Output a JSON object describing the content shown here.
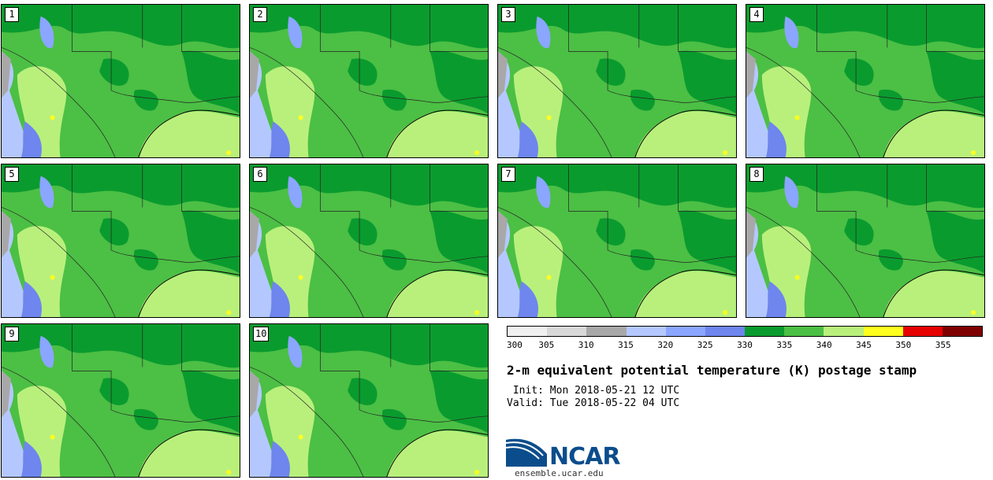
{
  "stamps": [
    {
      "label": "1"
    },
    {
      "label": "2"
    },
    {
      "label": "3"
    },
    {
      "label": "4"
    },
    {
      "label": "5"
    },
    {
      "label": "6"
    },
    {
      "label": "7"
    },
    {
      "label": "8"
    },
    {
      "label": "9"
    },
    {
      "label": "10"
    }
  ],
  "colorbar": {
    "ticks": [
      "300",
      "305",
      "310",
      "315",
      "320",
      "325",
      "330",
      "335",
      "340",
      "345",
      "350",
      "355"
    ],
    "colors": [
      "#f0f0f0",
      "#d8d8d8",
      "#a8a8a8",
      "#b4c8ff",
      "#8aa6ff",
      "#6e86ee",
      "#0a9b2e",
      "#4cbf45",
      "#b9f07c",
      "#ffff1e",
      "#e60000",
      "#7f0000"
    ]
  },
  "title": "2-m equivalent potential temperature (K) postage stamp",
  "init": " Init: Mon 2018-05-21 12 UTC",
  "valid": "Valid: Tue 2018-05-22 04 UTC",
  "logo": {
    "text": "NCAR",
    "url": "ensemble.ucar.edu"
  }
}
